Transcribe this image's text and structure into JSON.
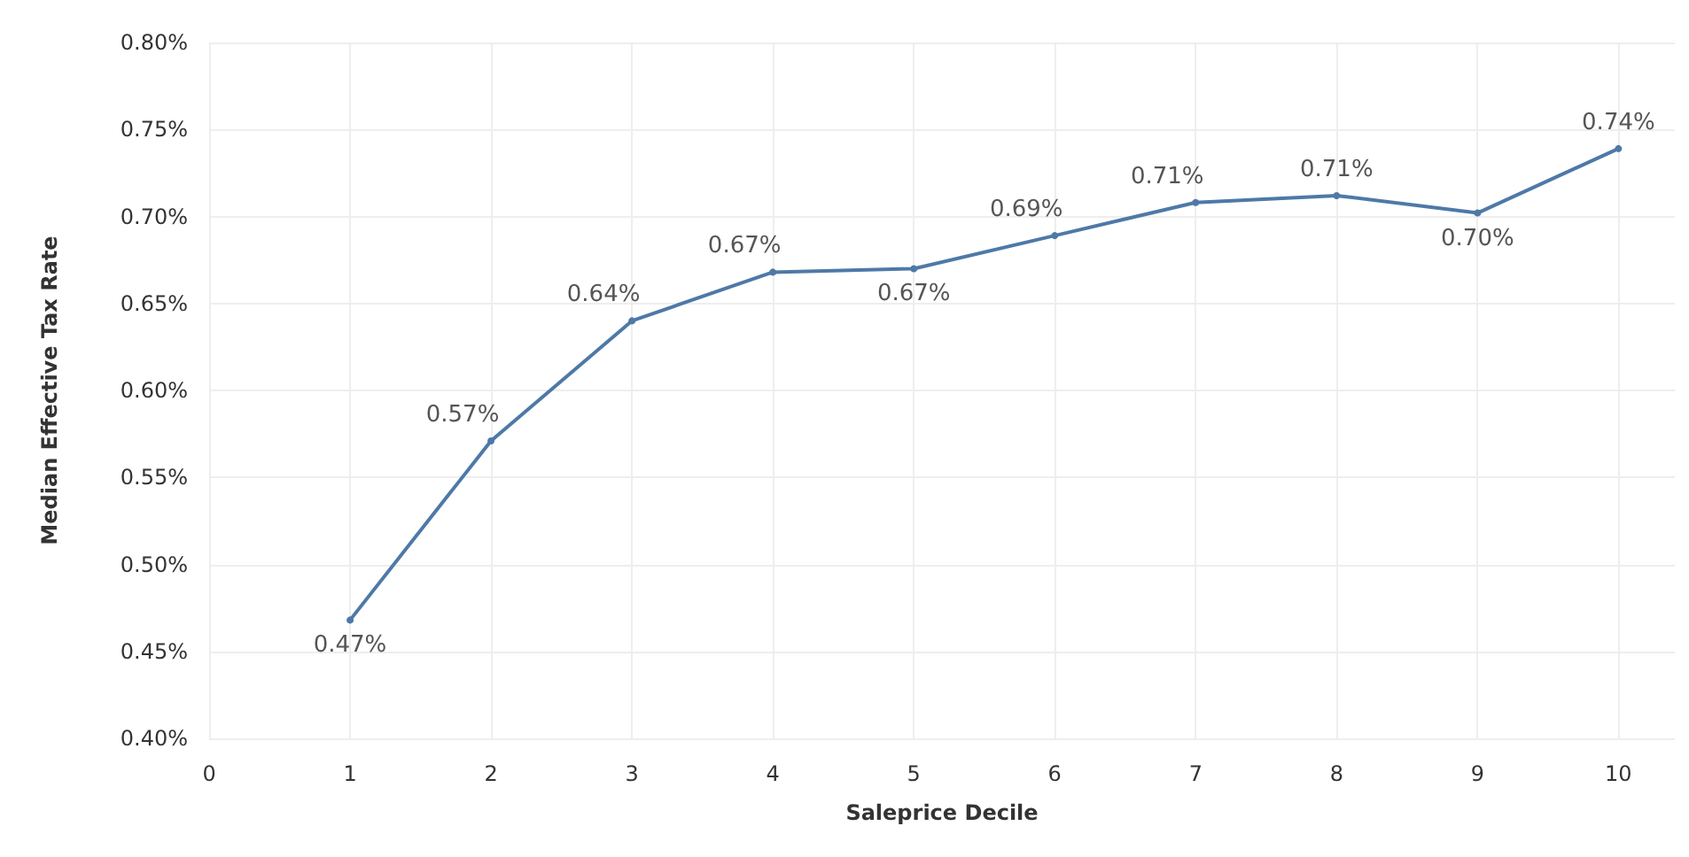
{
  "chart_data": {
    "type": "line",
    "xlabel": "Saleprice Decile",
    "ylabel": "Median Effective Tax Rate",
    "x": [
      1,
      2,
      3,
      4,
      5,
      6,
      7,
      8,
      9,
      10
    ],
    "series": [
      {
        "color": "#4e79a7",
        "values": [
          0.468,
          0.571,
          0.64,
          0.668,
          0.67,
          0.689,
          0.708,
          0.712,
          0.702,
          0.739
        ],
        "value_labels": [
          "0.47%",
          "0.57%",
          "0.64%",
          "0.67%",
          "0.67%",
          "0.69%",
          "0.71%",
          "0.71%",
          "0.70%",
          "0.74%"
        ]
      }
    ],
    "xlim": [
      0,
      10.4
    ],
    "xticks": [
      0,
      1,
      2,
      3,
      4,
      5,
      6,
      7,
      8,
      9,
      10
    ],
    "ylim": [
      0.4,
      0.8
    ],
    "yticks": [
      {
        "value": 0.4,
        "label": "0.40%"
      },
      {
        "value": 0.45,
        "label": "0.45%"
      },
      {
        "value": 0.5,
        "label": "0.50%"
      },
      {
        "value": 0.55,
        "label": "0.55%"
      },
      {
        "value": 0.6,
        "label": "0.60%"
      },
      {
        "value": 0.65,
        "label": "0.65%"
      },
      {
        "value": 0.7,
        "label": "0.70%"
      },
      {
        "value": 0.75,
        "label": "0.75%"
      },
      {
        "value": 0.8,
        "label": "0.80%"
      }
    ],
    "grid": true,
    "marker": "circle",
    "line_style": "solid"
  }
}
